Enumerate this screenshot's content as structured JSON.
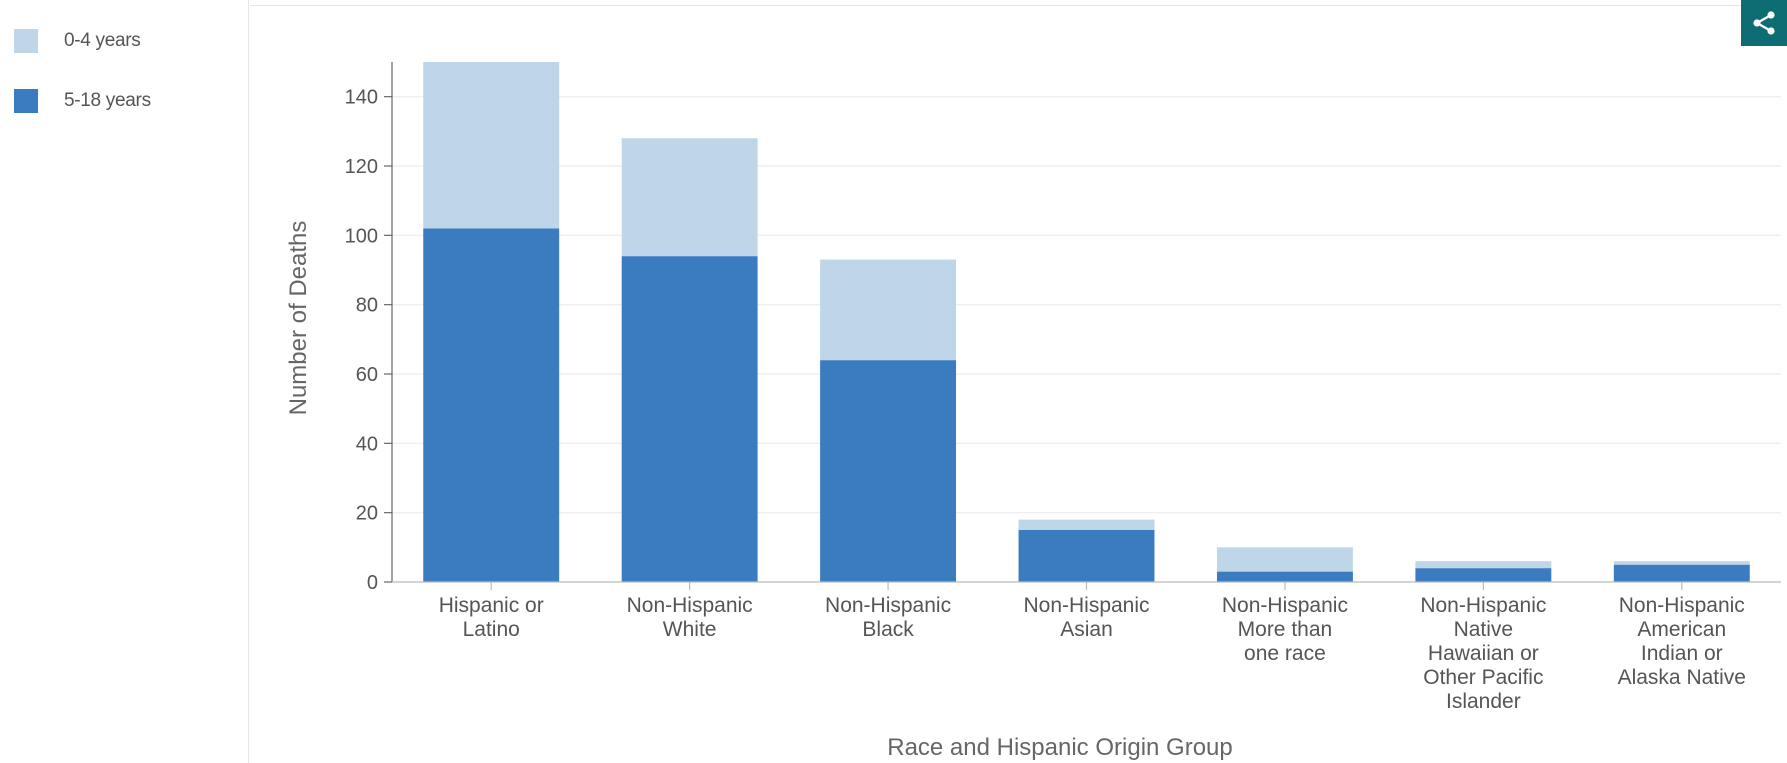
{
  "legend": {
    "items": [
      {
        "label": "0-4 years",
        "color": "#bed6e8"
      },
      {
        "label": "5-18 years",
        "color": "#3b7cc0"
      }
    ]
  },
  "share": {
    "icon": "share-icon",
    "background": "#0e6c73"
  },
  "chart_data": {
    "type": "bar",
    "stacked": true,
    "categories": [
      "Hispanic or Latino",
      "Non-Hispanic White",
      "Non-Hispanic Black",
      "Non-Hispanic Asian",
      "Non-Hispanic More than one race",
      "Non-Hispanic Native Hawaiian or Other Pacific Islander",
      "Non-Hispanic American Indian or Alaska Native"
    ],
    "category_label_lines": [
      [
        "Hispanic or",
        "Latino"
      ],
      [
        "Non-Hispanic",
        "White"
      ],
      [
        "Non-Hispanic",
        "Black"
      ],
      [
        "Non-Hispanic",
        "Asian"
      ],
      [
        "Non-Hispanic",
        "More than",
        "one race"
      ],
      [
        "Non-Hispanic",
        "Native",
        "Hawaiian or",
        "Other Pacific",
        "Islander"
      ],
      [
        "Non-Hispanic",
        "American",
        "Indian or",
        "Alaska Native"
      ]
    ],
    "series": [
      {
        "name": "5-18 years",
        "color": "#3b7cc0",
        "values": [
          102,
          94,
          64,
          15,
          3,
          4,
          5
        ]
      },
      {
        "name": "0-4 years",
        "color": "#bed6e8",
        "values": [
          48,
          34,
          29,
          3,
          7,
          2,
          1
        ]
      }
    ],
    "xlabel": "Race and Hispanic Origin Group",
    "ylabel": "Number of Deaths",
    "ylim": [
      0,
      150
    ],
    "yticks": [
      0,
      20,
      40,
      60,
      80,
      100,
      120,
      140
    ],
    "grid": true,
    "legend_position": "left"
  }
}
